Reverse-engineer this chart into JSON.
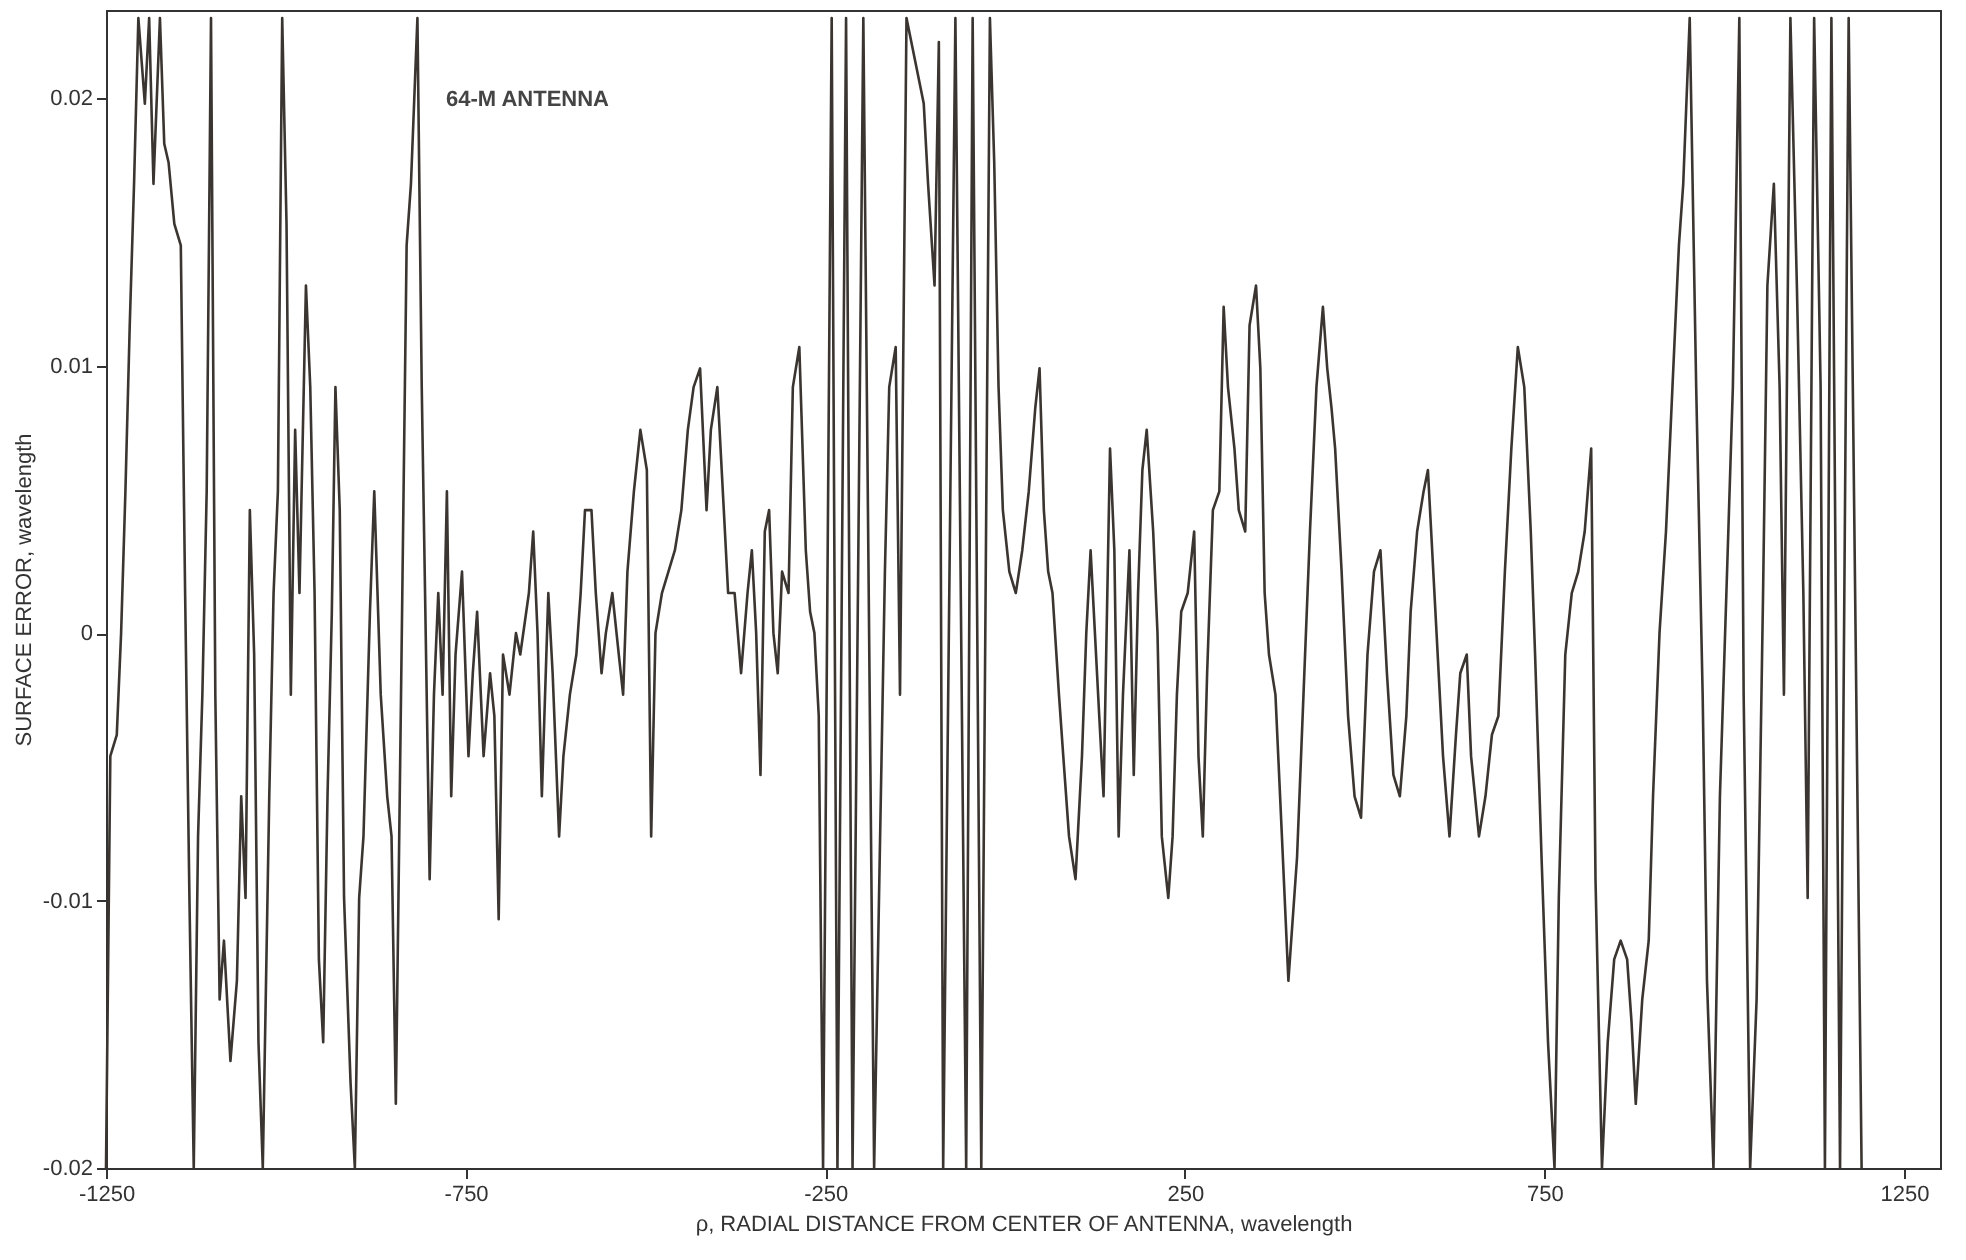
{
  "chart_data": {
    "type": "line",
    "xlabel": "ρ, RADIAL DISTANCE FROM CENTER OF ANTENNA, wavelength",
    "ylabel": "SURFACE ERROR, wavelength",
    "annotations": [
      "64-M ANTENNA"
    ],
    "xlim": [
      -1250,
      1300
    ],
    "ylim": [
      -0.02,
      0.0233
    ],
    "xticks": [
      -1250,
      -750,
      -250,
      250,
      750,
      1250
    ],
    "yticks": [
      -0.02,
      -0.01,
      0,
      0.01,
      0.02
    ],
    "marker": "none",
    "line_style": "solid",
    "x": [
      -1250,
      -1244,
      -1235,
      -1229,
      -1223,
      -1217,
      -1211,
      -1205,
      -1196,
      -1190,
      -1184,
      -1175,
      -1169,
      -1163,
      -1155,
      -1146,
      -1140,
      -1134,
      -1128,
      -1122,
      -1116,
      -1110,
      -1104,
      -1098,
      -1092,
      -1086,
      -1077,
      -1068,
      -1062,
      -1056,
      -1050,
      -1044,
      -1038,
      -1032,
      -1023,
      -1017,
      -1011,
      -1005,
      -999,
      -993,
      -987,
      -981,
      -972,
      -966,
      -960,
      -954,
      -948,
      -942,
      -936,
      -931,
      -925,
      -919,
      -910,
      -904,
      -898,
      -892,
      -883,
      -877,
      -868,
      -859,
      -853,
      -847,
      -838,
      -832,
      -826,
      -817,
      -811,
      -805,
      -800,
      -794,
      -788,
      -782,
      -776,
      -770,
      -764,
      -755,
      -746,
      -740,
      -734,
      -725,
      -716,
      -710,
      -704,
      -698,
      -689,
      -680,
      -674,
      -662,
      -656,
      -650,
      -644,
      -635,
      -629,
      -620,
      -614,
      -605,
      -596,
      -590,
      -584,
      -575,
      -569,
      -561,
      -555,
      -546,
      -537,
      -531,
      -525,
      -516,
      -507,
      -498,
      -492,
      -486,
      -477,
      -468,
      -459,
      -450,
      -441,
      -433,
      -424,
      -415,
      -409,
      -400,
      -391,
      -385,
      -376,
      -367,
      -358,
      -352,
      -346,
      -340,
      -334,
      -328,
      -322,
      -316,
      -310,
      -301,
      -295,
      -286,
      -277,
      -271,
      -265,
      -259,
      -253,
      -241,
      -233,
      -221,
      -212,
      -197,
      -182,
      -167,
      -161,
      -152,
      -146,
      -137,
      -113,
      -107,
      -98,
      -92,
      -86,
      -69,
      -54,
      -45,
      -33,
      -21,
      -15,
      -9,
      -3,
      6,
      15,
      24,
      33,
      42,
      48,
      54,
      60,
      66,
      75,
      81,
      89,
      98,
      107,
      113,
      119,
      125,
      131,
      137,
      146,
      152,
      158,
      164,
      173,
      179,
      185,
      191,
      197,
      206,
      212,
      218,
      227,
      233,
      239,
      245,
      254,
      263,
      269,
      275,
      281,
      289,
      298,
      304,
      310,
      319,
      325,
      334,
      340,
      349,
      355,
      361,
      367,
      376,
      385,
      394,
      406,
      415,
      424,
      433,
      442,
      448,
      454,
      459,
      468,
      477,
      486,
      495,
      504,
      513,
      522,
      531,
      540,
      549,
      558,
      564,
      573,
      582,
      588,
      600,
      609,
      618,
      627,
      633,
      642,
      648,
      659,
      668,
      677,
      686,
      695,
      704,
      713,
      722,
      731,
      737,
      746,
      755,
      764,
      770,
      779,
      788,
      797,
      806,
      815,
      821,
      830,
      838,
      847,
      856,
      865,
      871,
      877,
      886,
      895,
      901,
      910,
      919,
      928,
      937,
      943,
      952,
      961,
      970,
      976,
      985,
      994,
      1003,
      1012,
      1021,
      1027,
      1036,
      1045,
      1054,
      1060,
      1069,
      1077,
      1083,
      1092,
      1101,
      1110,
      1116,
      1125,
      1134,
      1140,
      1149,
      1161,
      1173,
      1182,
      1191
    ],
    "series": [
      {
        "color": "#3a3530",
        "values": [
          -0.02,
          -0.0046,
          -0.0038,
          0,
          0.0053,
          0.0115,
          0.0168,
          0.023,
          0.0198,
          0.023,
          0.0168,
          0.023,
          0.0183,
          0.0176,
          0.0153,
          0.0145,
          0.0015,
          -0.0099,
          -0.02,
          -0.0076,
          -0.0023,
          0.0053,
          0.023,
          -0.0023,
          -0.0137,
          -0.0115,
          -0.016,
          -0.013,
          -0.0061,
          -0.0099,
          0.0046,
          -0.0008,
          -0.0153,
          -0.02,
          -0.0061,
          0.0015,
          0.0053,
          0.023,
          0.0153,
          -0.0023,
          0.0076,
          0.0015,
          0.013,
          0.0092,
          0.0015,
          -0.0122,
          -0.0153,
          -0.0061,
          0.0008,
          0.0092,
          0.0046,
          -0.0099,
          -0.0168,
          -0.02,
          -0.0099,
          -0.0076,
          0.0008,
          0.0053,
          -0.0023,
          -0.0061,
          -0.0076,
          -0.0176,
          0.0015,
          0.0145,
          0.0168,
          0.023,
          0.0092,
          -0.0008,
          -0.0092,
          -0.0023,
          0.0015,
          -0.0023,
          0.0053,
          -0.0061,
          -0.0008,
          0.0023,
          -0.0046,
          -0.0015,
          0.0008,
          -0.0046,
          -0.0015,
          -0.0031,
          -0.0107,
          -0.0008,
          -0.0023,
          0,
          -0.0008,
          0.0015,
          0.0038,
          0,
          -0.0061,
          0.0015,
          -0.0015,
          -0.0076,
          -0.0046,
          -0.0023,
          -0.0008,
          0.0015,
          0.0046,
          0.0046,
          0.0015,
          -0.0015,
          0,
          0.0015,
          -0.0008,
          -0.0023,
          0.0023,
          0.0053,
          0.0076,
          0.0061,
          -0.0076,
          0,
          0.0015,
          0.0023,
          0.0031,
          0.0046,
          0.0076,
          0.0092,
          0.0099,
          0.0046,
          0.0076,
          0.0092,
          0.0046,
          0.0015,
          0.0015,
          -0.0015,
          0.0015,
          0.0031,
          0,
          -0.0053,
          0.0038,
          0.0046,
          0,
          -0.0015,
          0.0023,
          0.0015,
          0.0092,
          0.0107,
          0.0031,
          0.0008,
          0,
          -0.0031,
          -0.02,
          0.023,
          -0.02,
          0.023,
          -0.02,
          0.023,
          -0.02,
          0.0023,
          0.0092,
          0.0107,
          -0.0023,
          0.023,
          0.0198,
          0.0168,
          0.013,
          0.0221,
          -0.02,
          0.023,
          -0.02,
          0.023,
          -0.02,
          0.023,
          0.0176,
          0.0092,
          0.0046,
          0.0023,
          0.0015,
          0.0031,
          0.0053,
          0.0084,
          0.0099,
          0.0046,
          0.0023,
          0.0015,
          -0.0023,
          -0.0046,
          -0.0076,
          -0.0092,
          -0.0046,
          0,
          0.0031,
          0,
          -0.0031,
          -0.0061,
          0.0069,
          0.0031,
          -0.0076,
          -0.0023,
          0.0031,
          -0.0053,
          0.0015,
          0.0061,
          0.0076,
          0.0038,
          0,
          -0.0076,
          -0.0099,
          -0.0076,
          -0.0023,
          0.0008,
          0.0015,
          0.0038,
          -0.0046,
          -0.0076,
          -0.0015,
          0.0046,
          0.0053,
          0.0122,
          0.0092,
          0.0069,
          0.0046,
          0.0038,
          0.0115,
          0.013,
          0.0099,
          0.0015,
          -0.0008,
          -0.0023,
          -0.0076,
          -0.013,
          -0.0084,
          -0.0023,
          0.0038,
          0.0092,
          0.0122,
          0.0099,
          0.0084,
          0.0069,
          0.0023,
          -0.0031,
          -0.0061,
          -0.0069,
          -0.0008,
          0.0023,
          0.0031,
          -0.0015,
          -0.0053,
          -0.0061,
          -0.0031,
          0.0008,
          0.0038,
          0.0053,
          0.0061,
          0,
          -0.0046,
          -0.0076,
          -0.0038,
          -0.0015,
          -0.0008,
          -0.0046,
          -0.0076,
          -0.0061,
          -0.0038,
          -0.0031,
          0.0023,
          0.0069,
          0.0107,
          0.0092,
          0.0038,
          -0.0008,
          -0.0084,
          -0.0153,
          -0.02,
          -0.0099,
          -0.0008,
          0.0015,
          0.0023,
          0.0038,
          0.0069,
          -0.0092,
          -0.02,
          -0.0153,
          -0.0122,
          -0.0115,
          -0.0122,
          -0.0145,
          -0.0176,
          -0.0137,
          -0.0115,
          -0.0061,
          0,
          0.0038,
          0.0092,
          0.0145,
          0.0168,
          0.023,
          0.0092,
          -0.0023,
          -0.013,
          -0.02,
          -0.0061,
          0.0015,
          0.0092,
          0.023,
          -0.0023,
          -0.02,
          -0.0137,
          0.0015,
          0.013,
          0.0168,
          0.0092,
          -0.0023,
          0.023,
          0.013,
          0.0015,
          -0.0099,
          0.023,
          0.0092,
          -0.02,
          0.023,
          -0.02,
          0.023,
          0.0015,
          -0.02
        ]
      }
    ]
  }
}
